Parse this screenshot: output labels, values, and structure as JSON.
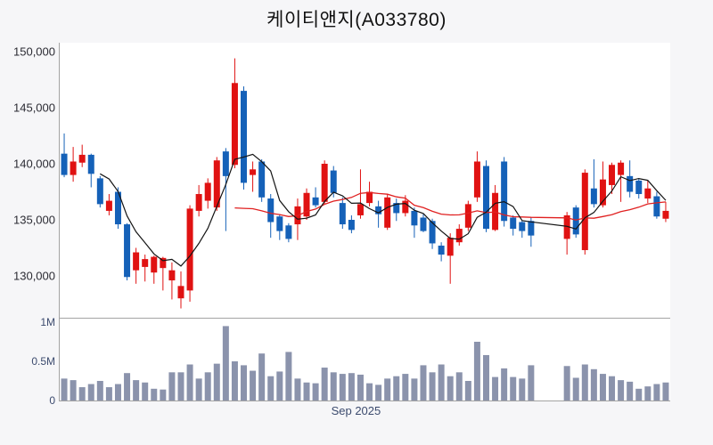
{
  "title": "케이티앤지(A033780)",
  "colors": {
    "up_candle": "#e01212",
    "down_candle": "#1561b8",
    "ma_short_line": "#141414",
    "ma_long_line": "#e02020",
    "volume_bar": "#8b93ac",
    "axis_line": "#a3a3a3",
    "price_label": "#2b2b33",
    "volume_label": "#3c4b6e",
    "date_label": "#3c4b6e",
    "plot_background": "#ffffff",
    "page_background": "#f6f6f8"
  },
  "price_axis": {
    "ticks": [
      {
        "label": "150,000",
        "value": 150000
      },
      {
        "label": "145,000",
        "value": 145000
      },
      {
        "label": "140,000",
        "value": 140000
      },
      {
        "label": "135,000",
        "value": 135000
      },
      {
        "label": "130,000",
        "value": 130000
      }
    ]
  },
  "volume_axis": {
    "ticks": [
      {
        "label": "1M",
        "value": 1.0
      },
      {
        "label": "0.5M",
        "value": 0.5
      },
      {
        "label": "0",
        "value": 0
      }
    ]
  },
  "x_axis": {
    "month_label": "Sep 2025",
    "month_label_slot": 32.5
  },
  "chart_data": {
    "type": "candlestick+volume",
    "up_means": "close>=open (red)",
    "down_means": "close<open (blue)",
    "ma_short_period": 5,
    "ma_long_period": 20,
    "price_view_top": 150800,
    "price_view_bottom": 126400,
    "volume_view_max_millions": 1.05,
    "gap_note": "null entries are non-trading slots (holiday gap)",
    "candles": [
      [
        140900,
        142700,
        138800,
        139000
      ],
      [
        139000,
        141500,
        138400,
        140200
      ],
      [
        140100,
        141700,
        139700,
        140800
      ],
      [
        140800,
        140900,
        137900,
        139100
      ],
      [
        138700,
        138900,
        136100,
        136400
      ],
      [
        135800,
        137300,
        135400,
        136700
      ],
      [
        137500,
        137900,
        134200,
        134600
      ],
      [
        134600,
        134700,
        129600,
        129900
      ],
      [
        130500,
        132500,
        129300,
        132100
      ],
      [
        130800,
        131900,
        129500,
        131500
      ],
      [
        130300,
        131800,
        129300,
        131700
      ],
      [
        130700,
        131700,
        128700,
        131600
      ],
      [
        129600,
        131200,
        127900,
        130500
      ],
      [
        128000,
        130400,
        127100,
        129100
      ],
      [
        128700,
        136300,
        127700,
        136000
      ],
      [
        135800,
        138100,
        135300,
        137300
      ],
      [
        136700,
        138700,
        136000,
        138300
      ],
      [
        136100,
        140600,
        135800,
        140300
      ],
      [
        141100,
        141400,
        134000,
        138900
      ],
      [
        139900,
        149400,
        139600,
        147200
      ],
      [
        146500,
        146900,
        137700,
        138300
      ],
      [
        139000,
        140200,
        137500,
        139500
      ],
      [
        140200,
        140400,
        136600,
        137000
      ],
      [
        136900,
        137300,
        133400,
        134800
      ],
      [
        135300,
        135500,
        133200,
        134000
      ],
      [
        134500,
        134700,
        133000,
        133300
      ],
      [
        134600,
        136900,
        133200,
        136200
      ],
      [
        135300,
        137800,
        135000,
        137400
      ],
      [
        137000,
        137900,
        136100,
        136300
      ],
      [
        136600,
        140300,
        136400,
        140000
      ],
      [
        139400,
        139800,
        137000,
        137400
      ],
      [
        136500,
        137000,
        134200,
        134600
      ],
      [
        135000,
        135400,
        133800,
        134100
      ],
      [
        135400,
        139500,
        135100,
        136400
      ],
      [
        136500,
        138400,
        136200,
        137500
      ],
      [
        136200,
        136700,
        134300,
        135500
      ],
      [
        134300,
        137300,
        134100,
        137000
      ],
      [
        136500,
        136900,
        134900,
        135600
      ],
      [
        135600,
        137200,
        135300,
        136700
      ],
      [
        135800,
        136100,
        133400,
        134500
      ],
      [
        135200,
        135500,
        133900,
        134000
      ],
      [
        134900,
        135100,
        132400,
        132900
      ],
      [
        132700,
        133000,
        131300,
        131900
      ],
      [
        131800,
        133800,
        129300,
        133400
      ],
      [
        133000,
        134600,
        132700,
        134200
      ],
      [
        134300,
        136700,
        134000,
        136400
      ],
      [
        137000,
        141100,
        136600,
        140200
      ],
      [
        139800,
        140300,
        133900,
        134200
      ],
      [
        134100,
        138100,
        134000,
        137400
      ],
      [
        140200,
        140600,
        134400,
        134900
      ],
      [
        135200,
        135400,
        133600,
        134200
      ],
      [
        134800,
        134900,
        133400,
        134000
      ],
      [
        134900,
        135200,
        132600,
        133600
      ],
      null,
      null,
      null,
      [
        133300,
        135700,
        131900,
        135400
      ],
      [
        136100,
        136300,
        133400,
        133700
      ],
      [
        132300,
        139500,
        131900,
        139200
      ],
      [
        137800,
        140400,
        136100,
        136400
      ],
      [
        136300,
        140200,
        136100,
        138600
      ],
      [
        138100,
        140100,
        137300,
        139900
      ],
      [
        139000,
        140300,
        136600,
        140100
      ],
      [
        138900,
        140300,
        137000,
        137500
      ],
      [
        138500,
        138700,
        136900,
        137300
      ],
      [
        136900,
        138500,
        136500,
        137800
      ],
      [
        137100,
        137500,
        135100,
        135300
      ],
      [
        135100,
        136600,
        134800,
        135800
      ]
    ],
    "volumes_millions": [
      0.28,
      0.26,
      0.17,
      0.21,
      0.25,
      0.17,
      0.21,
      0.35,
      0.26,
      0.23,
      0.15,
      0.14,
      0.36,
      0.36,
      0.46,
      0.28,
      0.36,
      0.47,
      0.95,
      0.5,
      0.45,
      0.38,
      0.6,
      0.31,
      0.37,
      0.62,
      0.28,
      0.23,
      0.22,
      0.42,
      0.36,
      0.34,
      0.35,
      0.33,
      0.22,
      0.2,
      0.28,
      0.31,
      0.34,
      0.28,
      0.45,
      0.36,
      0.46,
      0.31,
      0.36,
      0.25,
      0.75,
      0.58,
      0.3,
      0.41,
      0.3,
      0.28,
      0.45,
      null,
      null,
      null,
      0.44,
      0.29,
      0.46,
      0.4,
      0.34,
      0.31,
      0.26,
      0.24,
      0.15,
      0.18,
      0.21,
      0.23
    ]
  }
}
